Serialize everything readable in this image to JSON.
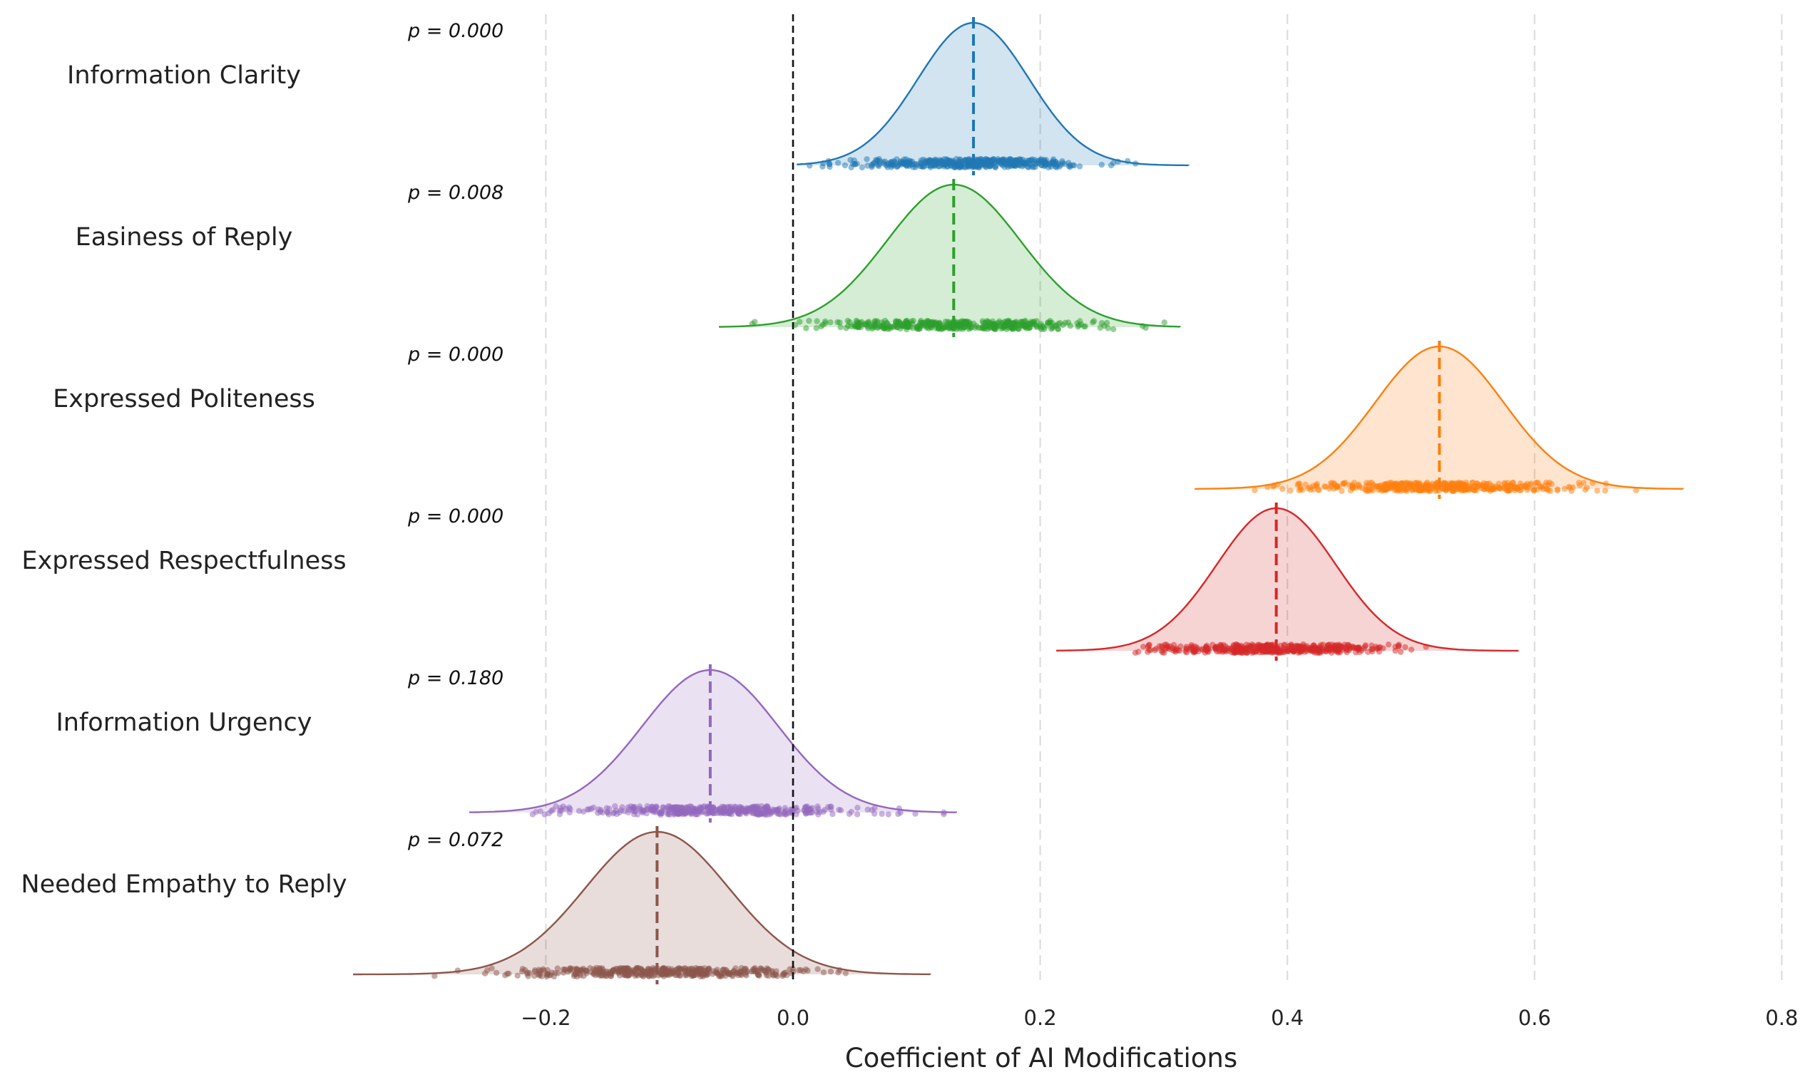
{
  "chart_data": {
    "type": "ridgeline",
    "title": "",
    "xlabel": "Coefficient of AI Modifications",
    "ylabel": "",
    "xlim": [
      -0.36,
      0.82
    ],
    "xticks": [
      -0.2,
      0.0,
      0.2,
      0.4,
      0.6,
      0.8
    ],
    "xtick_labels": [
      "−0.2",
      "0.0",
      "0.2",
      "0.4",
      "0.6",
      "0.8"
    ],
    "grid": "vertical dashed",
    "reference_line": 0.0,
    "series": [
      {
        "name": "Information Clarity",
        "p_label": "p = 0.000",
        "mean": 0.146,
        "sd": 0.045,
        "range": [
          0.003,
          0.32
        ],
        "color": "#1f77b4"
      },
      {
        "name": "Easiness of Reply",
        "p_label": "p = 0.008",
        "mean": 0.13,
        "sd": 0.054,
        "range": [
          -0.06,
          0.313
        ],
        "color": "#2ca02c"
      },
      {
        "name": "Expressed Politeness",
        "p_label": "p = 0.000",
        "mean": 0.523,
        "sd": 0.052,
        "range": [
          0.325,
          0.72
        ],
        "color": "#ff7f0e"
      },
      {
        "name": "Expressed Respectfulness",
        "p_label": "p = 0.000",
        "mean": 0.391,
        "sd": 0.048,
        "range": [
          0.213,
          0.587
        ],
        "color": "#d62728"
      },
      {
        "name": "Information Urgency",
        "p_label": "p = 0.180",
        "mean": -0.067,
        "sd": 0.055,
        "range": [
          -0.262,
          0.132
        ],
        "color": "#9467bd"
      },
      {
        "name": "Needed Empathy to Reply",
        "p_label": "p = 0.072",
        "mean": -0.11,
        "sd": 0.058,
        "range": [
          -0.356,
          0.111
        ],
        "color": "#8c564b"
      }
    ]
  }
}
